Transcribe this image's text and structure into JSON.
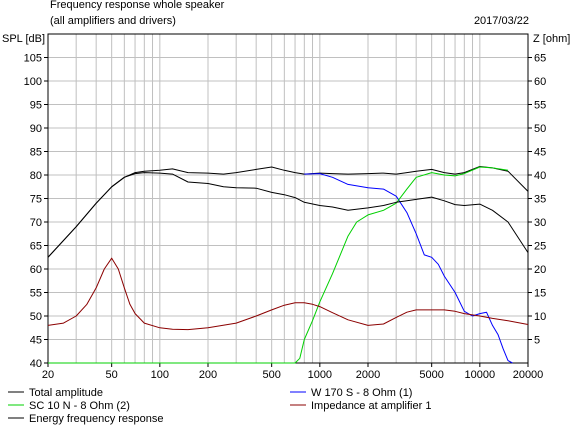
{
  "header": {
    "title": "Frequency response whole speaker",
    "subtitle": "(all amplifiers and drivers)",
    "date": "2017/03/22"
  },
  "chart_data": {
    "type": "line",
    "x_scale": "log",
    "xlim": [
      20,
      20000
    ],
    "xticks": [
      "20",
      "50",
      "100",
      "200",
      "500",
      "1000",
      "2000",
      "5000",
      "10000",
      "20000"
    ],
    "xtick_values": [
      20,
      50,
      100,
      200,
      500,
      1000,
      2000,
      5000,
      10000,
      20000
    ],
    "ylabel_left": "SPL [dB]",
    "ylim_left": [
      40,
      110
    ],
    "yticks_left": [
      "40",
      "45",
      "50",
      "55",
      "60",
      "65",
      "70",
      "75",
      "80",
      "85",
      "90",
      "95",
      "100",
      "105"
    ],
    "ylabel_right": "Z [ohm]",
    "ylim_right": [
      0,
      70
    ],
    "yticks_right": [
      "5",
      "10",
      "15",
      "20",
      "25",
      "30",
      "35",
      "40",
      "45",
      "50",
      "55",
      "60",
      "65"
    ],
    "grid": true,
    "legend_position": "bottom",
    "series": [
      {
        "name": "Total amplitude",
        "axis": "left",
        "color": "#000000",
        "x": [
          20,
          30,
          40,
          50,
          60,
          70,
          80,
          100,
          120,
          150,
          200,
          250,
          300,
          400,
          500,
          600,
          700,
          800,
          1000,
          1200,
          1500,
          2000,
          2500,
          3000,
          3500,
          4000,
          5000,
          6000,
          7000,
          8000,
          10000,
          12000,
          15000,
          20000
        ],
        "y": [
          62.5,
          69,
          74,
          77.5,
          79.5,
          80.5,
          80.8,
          81,
          81.3,
          80.5,
          80.4,
          80.2,
          80.5,
          81.2,
          81.7,
          81,
          80.5,
          80.2,
          80.4,
          80.3,
          80.2,
          80.3,
          80.4,
          80.2,
          80.5,
          80.8,
          81.2,
          80.5,
          80.2,
          80.5,
          81.8,
          81.5,
          80.8,
          76.5
        ]
      },
      {
        "name": "W 170 S - 8 Ohm (1)",
        "axis": "left",
        "color": "#0000ff",
        "x": [
          800,
          1000,
          1200,
          1500,
          2000,
          2500,
          3000,
          3500,
          4000,
          4500,
          5000,
          5500,
          6000,
          7000,
          8000,
          9000,
          10000,
          11000,
          12000,
          13000,
          14000,
          15000,
          16000
        ],
        "y": [
          80.2,
          80.3,
          79.5,
          78,
          77.3,
          77,
          75.5,
          72,
          67.5,
          63,
          62.5,
          61,
          58.5,
          55,
          51,
          50,
          50.5,
          50.8,
          48,
          46,
          43,
          40.5,
          40
        ]
      },
      {
        "name": "SC 10 N - 8 Ohm (2)",
        "axis": "left",
        "color": "#00d000",
        "x": [
          20,
          500,
          700,
          750,
          800,
          900,
          1000,
          1200,
          1500,
          1700,
          2000,
          2500,
          3000,
          3500,
          4000,
          5000,
          6000,
          7000,
          8000,
          10000,
          12000,
          15000
        ],
        "y": [
          40,
          40,
          40,
          41,
          45,
          49,
          53,
          59,
          67,
          70,
          71.5,
          72.5,
          74,
          77,
          79.5,
          80.5,
          80,
          79.8,
          80.3,
          81.7,
          81.5,
          81
        ]
      },
      {
        "name": "Energy frequency response",
        "axis": "left",
        "color": "#000000",
        "x": [
          20,
          30,
          40,
          50,
          60,
          70,
          80,
          100,
          120,
          150,
          200,
          250,
          300,
          400,
          500,
          600,
          700,
          800,
          1000,
          1200,
          1500,
          2000,
          2500,
          3000,
          3500,
          4000,
          5000,
          6000,
          7000,
          8000,
          10000,
          12000,
          15000,
          20000
        ],
        "y": [
          62.5,
          69,
          74,
          77.5,
          79.5,
          80.3,
          80.5,
          80.4,
          80.2,
          78.5,
          78.2,
          77.5,
          77.3,
          77.2,
          76.3,
          75.8,
          75.2,
          74.2,
          73.5,
          73.2,
          72.5,
          73,
          73.5,
          74.2,
          74.5,
          74.8,
          75.3,
          74.5,
          73.7,
          73.5,
          73.8,
          72.5,
          70,
          63.5
        ]
      },
      {
        "name": "Impedance at amplifier 1",
        "axis": "right",
        "color": "#8b0000",
        "x": [
          20,
          25,
          30,
          35,
          40,
          45,
          50,
          55,
          60,
          65,
          70,
          80,
          100,
          120,
          150,
          200,
          300,
          400,
          500,
          600,
          700,
          800,
          900,
          1000,
          1200,
          1500,
          2000,
          2500,
          3000,
          3500,
          4000,
          5000,
          6000,
          7000,
          8000,
          10000,
          12000,
          15000,
          20000
        ],
        "y": [
          8,
          8.5,
          10,
          12.5,
          16,
          20,
          22.3,
          20,
          16,
          12.5,
          10.5,
          8.5,
          7.5,
          7.2,
          7.1,
          7.5,
          8.5,
          10,
          11.3,
          12.3,
          12.8,
          12.8,
          12.5,
          12,
          10.7,
          9.2,
          8,
          8.3,
          9.7,
          10.8,
          11.3,
          11.3,
          11.3,
          11,
          10.5,
          10,
          9.5,
          9,
          8.2
        ]
      }
    ]
  }
}
